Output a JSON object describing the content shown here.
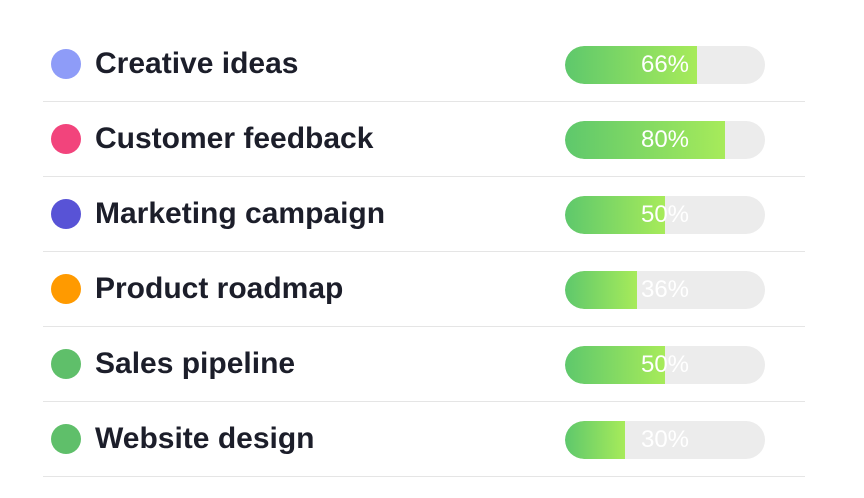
{
  "items": [
    {
      "label": "Creative ideas",
      "percent_text": "66%",
      "value": 66,
      "dot_color": "#8e9cf8"
    },
    {
      "label": "Customer feedback",
      "percent_text": "80%",
      "value": 80,
      "dot_color": "#f2447c"
    },
    {
      "label": "Marketing campaign",
      "percent_text": "50%",
      "value": 50,
      "dot_color": "#5853d6"
    },
    {
      "label": "Product roadmap",
      "percent_text": "36%",
      "value": 36,
      "dot_color": "#ff9a00"
    },
    {
      "label": "Sales pipeline",
      "percent_text": "50%",
      "value": 50,
      "dot_color": "#5fbf6a"
    },
    {
      "label": "Website design",
      "percent_text": "30%",
      "value": 30,
      "dot_color": "#5fbf6a"
    }
  ],
  "colors": {
    "bar_track": "#ececec",
    "bar_fill_start": "#5ec86c",
    "bar_fill_end": "#a7eb5a",
    "label_text": "#1c1e2a",
    "divider": "#e5e5e5"
  }
}
